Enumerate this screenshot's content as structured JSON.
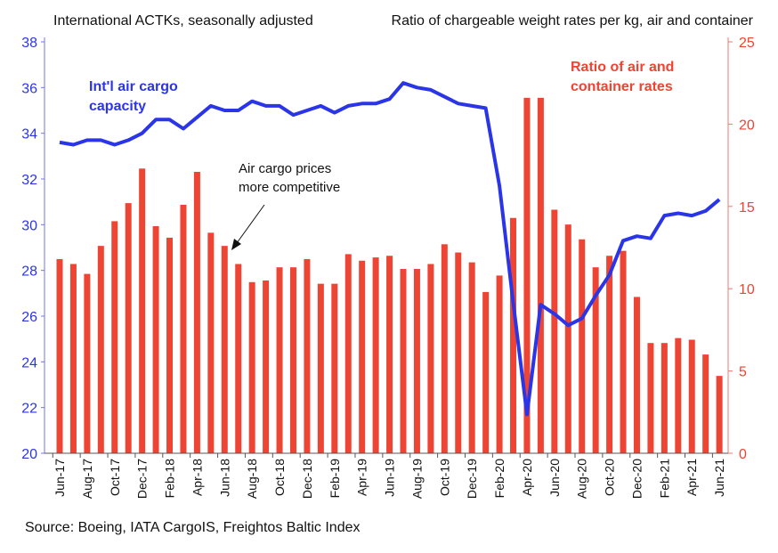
{
  "chart_data": {
    "type": "bar+line",
    "left_axis_title": "International ACTKs, seasonally adjusted",
    "right_axis_title": "Ratio of chargeable weight rates per kg, air and container",
    "source": "Source: Boeing, IATA CargoIS, Freightos Baltic Index",
    "left_ylim": [
      20,
      38
    ],
    "left_ticks": [
      20,
      22,
      24,
      26,
      28,
      30,
      32,
      34,
      36,
      38
    ],
    "right_ylim": [
      0,
      25
    ],
    "right_ticks": [
      0,
      5,
      10,
      15,
      20,
      25
    ],
    "x_tick_labels": [
      "Jun-17",
      "Aug-17",
      "Oct-17",
      "Dec-17",
      "Feb-18",
      "Apr-18",
      "Jun-18",
      "Aug-18",
      "Oct-18",
      "Dec-18",
      "Feb-19",
      "Apr-19",
      "Jun-19",
      "Aug-19",
      "Oct-19",
      "Dec-19",
      "Feb-20",
      "Apr-20",
      "Jun-20",
      "Aug-20",
      "Oct-20",
      "Dec-20",
      "Feb-21",
      "Apr-21",
      "Jun-21"
    ],
    "x_start": "Jun-17",
    "x_end": "Jun-21",
    "series": [
      {
        "name": "Ratio of air and container rates",
        "type": "bar",
        "axis": "right",
        "color": "#ee4433",
        "values": [
          11.8,
          11.5,
          10.9,
          12.6,
          14.1,
          15.2,
          17.3,
          13.8,
          13.1,
          15.1,
          17.1,
          13.4,
          12.6,
          11.5,
          10.4,
          10.5,
          11.3,
          11.3,
          11.8,
          10.3,
          10.3,
          12.1,
          11.7,
          11.9,
          12.0,
          11.2,
          11.2,
          11.5,
          12.7,
          12.2,
          11.6,
          9.8,
          10.8,
          14.3,
          21.6,
          21.6,
          14.8,
          13.9,
          13.0,
          11.3,
          12.0,
          12.3,
          9.5,
          6.7,
          6.7,
          7.0,
          6.9,
          6.0,
          4.7
        ]
      },
      {
        "name": "Int'l air cargo capacity",
        "type": "line",
        "axis": "left",
        "color": "#2b35e8",
        "values": [
          33.6,
          33.5,
          33.7,
          33.7,
          33.5,
          33.7,
          34.0,
          34.6,
          34.6,
          34.2,
          34.7,
          35.2,
          35.0,
          35.0,
          35.4,
          35.2,
          35.2,
          34.8,
          35.0,
          35.2,
          34.9,
          35.2,
          35.3,
          35.3,
          35.5,
          36.2,
          36.0,
          35.9,
          35.6,
          35.3,
          35.2,
          35.1,
          31.7,
          26.6,
          21.7,
          26.5,
          26.1,
          25.6,
          25.9,
          26.9,
          27.8,
          29.3,
          29.5,
          29.4,
          30.4,
          30.5,
          30.4,
          30.6,
          31.1
        ]
      }
    ],
    "labels": {
      "line_label_1": "Int'l air cargo",
      "line_label_2": "capacity",
      "bar_label_1": "Ratio of air and",
      "bar_label_2": "container rates",
      "annotation_1": "Air cargo prices",
      "annotation_2": "more competitive"
    },
    "grid": false,
    "legend": "inline labels"
  }
}
